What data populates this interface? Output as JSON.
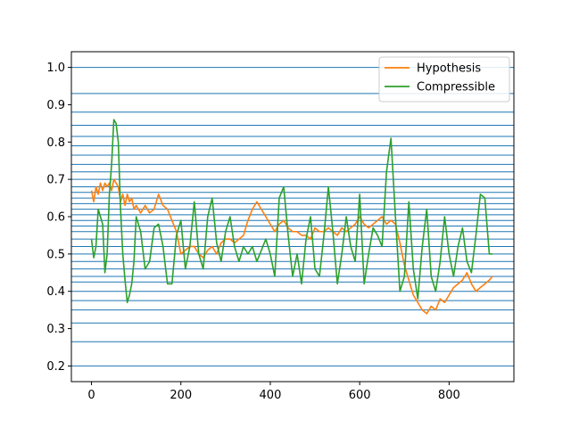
{
  "chart_data": {
    "type": "line",
    "title": "",
    "xlabel": "",
    "ylabel": "",
    "xlim": [
      -45,
      945
    ],
    "ylim": [
      0.158,
      1.042
    ],
    "xticks": [
      0,
      200,
      400,
      600,
      800
    ],
    "yticks": [
      0.2,
      0.3,
      0.4,
      0.5,
      0.6,
      0.7,
      0.8,
      0.9,
      1.0
    ],
    "ytick_labels": [
      "0.2",
      "0.3",
      "0.4",
      "0.5",
      "0.6",
      "0.7",
      "0.8",
      "0.9",
      "1.0"
    ],
    "hlines": [
      0.2,
      0.265,
      0.315,
      0.35,
      0.375,
      0.4,
      0.425,
      0.44,
      0.46,
      0.48,
      0.5,
      0.52,
      0.54,
      0.56,
      0.575,
      0.59,
      0.605,
      0.62,
      0.635,
      0.65,
      0.665,
      0.68,
      0.7,
      0.72,
      0.74,
      0.765,
      0.79,
      0.815,
      0.845,
      0.88,
      0.93,
      1.0
    ],
    "grid": false,
    "legend": "top-right",
    "series": [
      {
        "name": "Hypothesis",
        "color": "#ff7f0e",
        "x": [
          0,
          5,
          10,
          15,
          20,
          25,
          30,
          35,
          40,
          45,
          50,
          55,
          60,
          65,
          70,
          75,
          80,
          85,
          90,
          95,
          100,
          110,
          120,
          130,
          140,
          150,
          160,
          170,
          180,
          190,
          200,
          210,
          220,
          230,
          240,
          250,
          260,
          270,
          280,
          290,
          300,
          310,
          320,
          330,
          340,
          350,
          360,
          370,
          380,
          390,
          400,
          410,
          420,
          430,
          440,
          450,
          460,
          470,
          480,
          490,
          500,
          510,
          520,
          530,
          540,
          550,
          560,
          570,
          580,
          590,
          600,
          610,
          620,
          630,
          640,
          650,
          660,
          670,
          680,
          690,
          700,
          710,
          720,
          730,
          740,
          750,
          760,
          770,
          780,
          790,
          800,
          810,
          820,
          830,
          840,
          850,
          860,
          870,
          880,
          890,
          897
        ],
        "y": [
          0.67,
          0.64,
          0.68,
          0.66,
          0.69,
          0.67,
          0.69,
          0.68,
          0.69,
          0.67,
          0.7,
          0.69,
          0.68,
          0.64,
          0.66,
          0.63,
          0.66,
          0.64,
          0.65,
          0.62,
          0.63,
          0.61,
          0.63,
          0.61,
          0.62,
          0.66,
          0.63,
          0.62,
          0.59,
          0.56,
          0.5,
          0.51,
          0.52,
          0.52,
          0.5,
          0.49,
          0.51,
          0.52,
          0.5,
          0.53,
          0.54,
          0.54,
          0.53,
          0.54,
          0.55,
          0.59,
          0.62,
          0.64,
          0.62,
          0.6,
          0.58,
          0.56,
          0.58,
          0.59,
          0.57,
          0.56,
          0.56,
          0.55,
          0.55,
          0.54,
          0.57,
          0.56,
          0.56,
          0.57,
          0.56,
          0.55,
          0.57,
          0.56,
          0.57,
          0.58,
          0.6,
          0.58,
          0.57,
          0.58,
          0.59,
          0.6,
          0.58,
          0.59,
          0.58,
          0.53,
          0.47,
          0.43,
          0.39,
          0.37,
          0.35,
          0.34,
          0.36,
          0.35,
          0.38,
          0.37,
          0.39,
          0.41,
          0.42,
          0.43,
          0.45,
          0.42,
          0.4,
          0.41,
          0.42,
          0.43,
          0.44
        ]
      },
      {
        "name": "Compressible",
        "color": "#2ca02c",
        "x": [
          0,
          5,
          10,
          15,
          20,
          25,
          30,
          35,
          40,
          45,
          50,
          55,
          60,
          65,
          70,
          75,
          80,
          85,
          90,
          95,
          100,
          110,
          120,
          130,
          140,
          150,
          160,
          170,
          180,
          190,
          200,
          210,
          220,
          230,
          240,
          250,
          260,
          270,
          280,
          290,
          300,
          310,
          320,
          330,
          340,
          350,
          360,
          370,
          380,
          390,
          400,
          410,
          420,
          430,
          440,
          450,
          460,
          470,
          480,
          490,
          500,
          510,
          520,
          530,
          540,
          550,
          560,
          570,
          580,
          590,
          600,
          610,
          620,
          630,
          640,
          650,
          660,
          670,
          680,
          690,
          700,
          710,
          720,
          730,
          740,
          750,
          760,
          770,
          780,
          790,
          800,
          810,
          820,
          830,
          840,
          850,
          860,
          870,
          880,
          890,
          897
        ],
        "y": [
          0.54,
          0.49,
          0.52,
          0.62,
          0.6,
          0.58,
          0.45,
          0.5,
          0.66,
          0.74,
          0.86,
          0.85,
          0.8,
          0.62,
          0.5,
          0.43,
          0.37,
          0.39,
          0.42,
          0.48,
          0.6,
          0.56,
          0.46,
          0.48,
          0.57,
          0.58,
          0.52,
          0.42,
          0.42,
          0.55,
          0.59,
          0.46,
          0.52,
          0.64,
          0.5,
          0.46,
          0.6,
          0.65,
          0.53,
          0.48,
          0.56,
          0.6,
          0.52,
          0.48,
          0.52,
          0.5,
          0.52,
          0.48,
          0.51,
          0.54,
          0.5,
          0.44,
          0.65,
          0.68,
          0.55,
          0.44,
          0.5,
          0.42,
          0.54,
          0.6,
          0.46,
          0.44,
          0.55,
          0.68,
          0.56,
          0.42,
          0.5,
          0.6,
          0.52,
          0.48,
          0.66,
          0.42,
          0.5,
          0.57,
          0.55,
          0.52,
          0.72,
          0.81,
          0.6,
          0.4,
          0.44,
          0.64,
          0.46,
          0.38,
          0.52,
          0.62,
          0.44,
          0.4,
          0.48,
          0.6,
          0.5,
          0.44,
          0.52,
          0.57,
          0.48,
          0.45,
          0.55,
          0.66,
          0.65,
          0.5,
          0.5
        ]
      }
    ]
  }
}
